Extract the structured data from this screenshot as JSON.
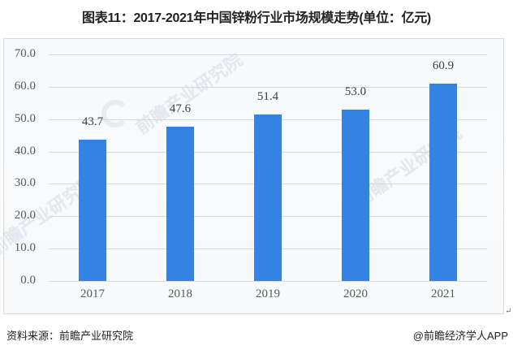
{
  "title": "图表11：2017-2021年中国锌粉行业市场规模走势(单位：亿元)",
  "source": "资料来源：前瞻产业研究院",
  "credit": "@前瞻经济学人APP",
  "watermark": "前瞻产业研究院",
  "return_mark": "↵",
  "colors": {
    "bar": "#3582e5",
    "grid": "#d9d9d9",
    "frame": "#d9d9d9"
  },
  "chart_data": {
    "type": "bar",
    "title": "图表11：2017-2021年中国锌粉行业市场规模走势(单位：亿元)",
    "xlabel": "",
    "ylabel": "",
    "categories": [
      "2017",
      "2018",
      "2019",
      "2020",
      "2021"
    ],
    "values": [
      43.7,
      47.6,
      51.4,
      53.0,
      60.9
    ],
    "value_labels": [
      "43.7",
      "47.6",
      "51.4",
      "53.0",
      "60.9"
    ],
    "yticks": [
      "0.0",
      "10.0",
      "20.0",
      "30.0",
      "40.0",
      "50.0",
      "60.0",
      "70.0"
    ],
    "ylim": [
      0,
      70
    ],
    "grid": true,
    "legend": "none",
    "unit": "亿元"
  }
}
